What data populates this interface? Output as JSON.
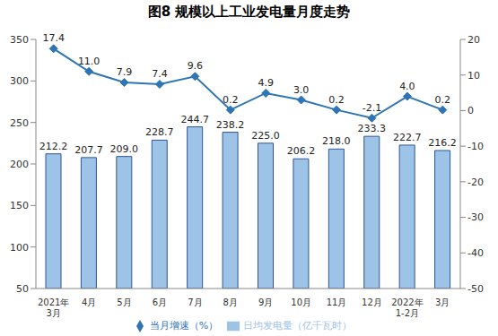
{
  "chart_data": {
    "type": "bar",
    "title": "图8 规模以上工业发电量月度走势",
    "categories": [
      "2021年\n3月",
      "4月",
      "5月",
      "6月",
      "7月",
      "8月",
      "9月",
      "10月",
      "11月",
      "12月",
      "2022年\n1-2月",
      "3月"
    ],
    "series": [
      {
        "name": "日均发电量（亿千瓦时）",
        "type": "bar",
        "color": "#9DC3E6",
        "values": [
          212.2,
          207.7,
          209.0,
          228.7,
          244.7,
          238.2,
          225.0,
          206.2,
          218.0,
          233.3,
          222.7,
          216.2
        ],
        "value_labels": [
          "212.2",
          "207.7",
          "209.0",
          "228.7",
          "244.7",
          "238.2",
          "225.0",
          "206.2",
          "218.0",
          "233.3",
          "222.7",
          "216.2"
        ]
      },
      {
        "name": "当月增速（%）",
        "type": "line",
        "axis": "y2",
        "color": "#2E75B6",
        "marker": "diamond",
        "values": [
          17.4,
          11.0,
          7.9,
          7.4,
          9.6,
          0.2,
          4.9,
          3.0,
          0.2,
          -2.1,
          4.0,
          0.2
        ],
        "value_labels": [
          "17.4",
          "11.0",
          "7.9",
          "7.4",
          "9.6",
          "0.2",
          "4.9",
          "3.0",
          "0.2",
          "-2.1",
          "4.0",
          "0.2"
        ]
      }
    ],
    "ylim": [
      50,
      350
    ],
    "yticks": [
      50,
      100,
      150,
      200,
      250,
      300,
      350
    ],
    "y2lim": [
      -50,
      20
    ],
    "y2ticks": [
      -50,
      -40,
      -30,
      -20,
      -10,
      0,
      10,
      20
    ],
    "data_labels": true,
    "legend": "bottom"
  }
}
